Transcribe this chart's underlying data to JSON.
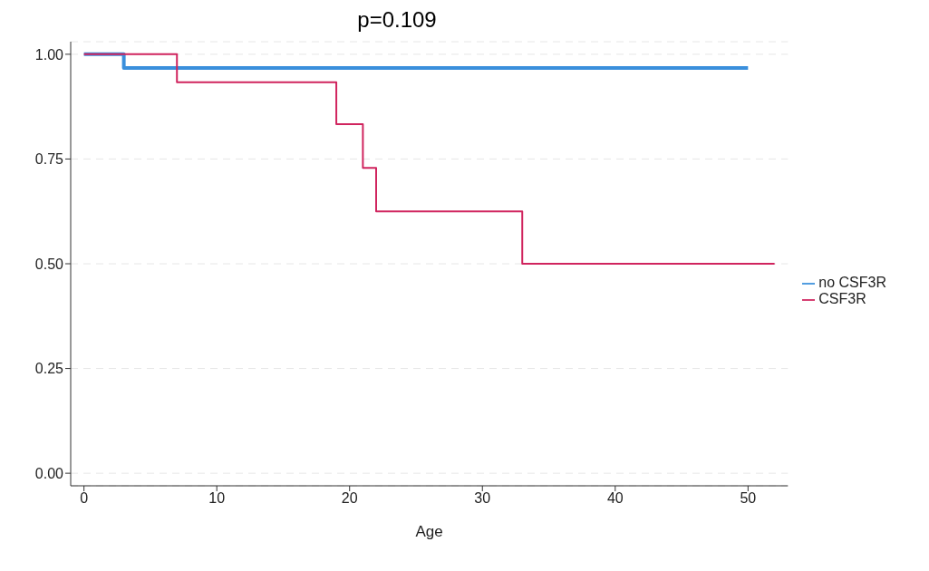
{
  "chart_data": {
    "type": "step",
    "title": "p=0.109",
    "xlabel": "Age",
    "series": [
      {
        "name": "no CSF3R",
        "color": "#3a8fdc",
        "x": [
          0,
          3,
          50
        ],
        "values": [
          1,
          0.967,
          0.967
        ]
      },
      {
        "name": "CSF3R",
        "color": "#d0245e",
        "x": [
          0,
          7,
          19,
          21,
          22,
          33,
          52
        ],
        "values": [
          1,
          0.933,
          0.833,
          0.729,
          0.625,
          0.5,
          0.5
        ]
      }
    ],
    "xlim": [
      -1,
      53
    ],
    "xticks": [
      0,
      10,
      20,
      30,
      40,
      50
    ],
    "ylim": [
      -0.03,
      1.03
    ],
    "yticks": [
      {
        "value": 0,
        "label": "0.00"
      },
      {
        "value": 0.25,
        "label": "0.25"
      },
      {
        "value": 0.5,
        "label": "0.50"
      },
      {
        "value": 0.75,
        "label": "0.75"
      },
      {
        "value": 1,
        "label": "1.00"
      }
    ],
    "grid": "y",
    "legend": "right"
  }
}
